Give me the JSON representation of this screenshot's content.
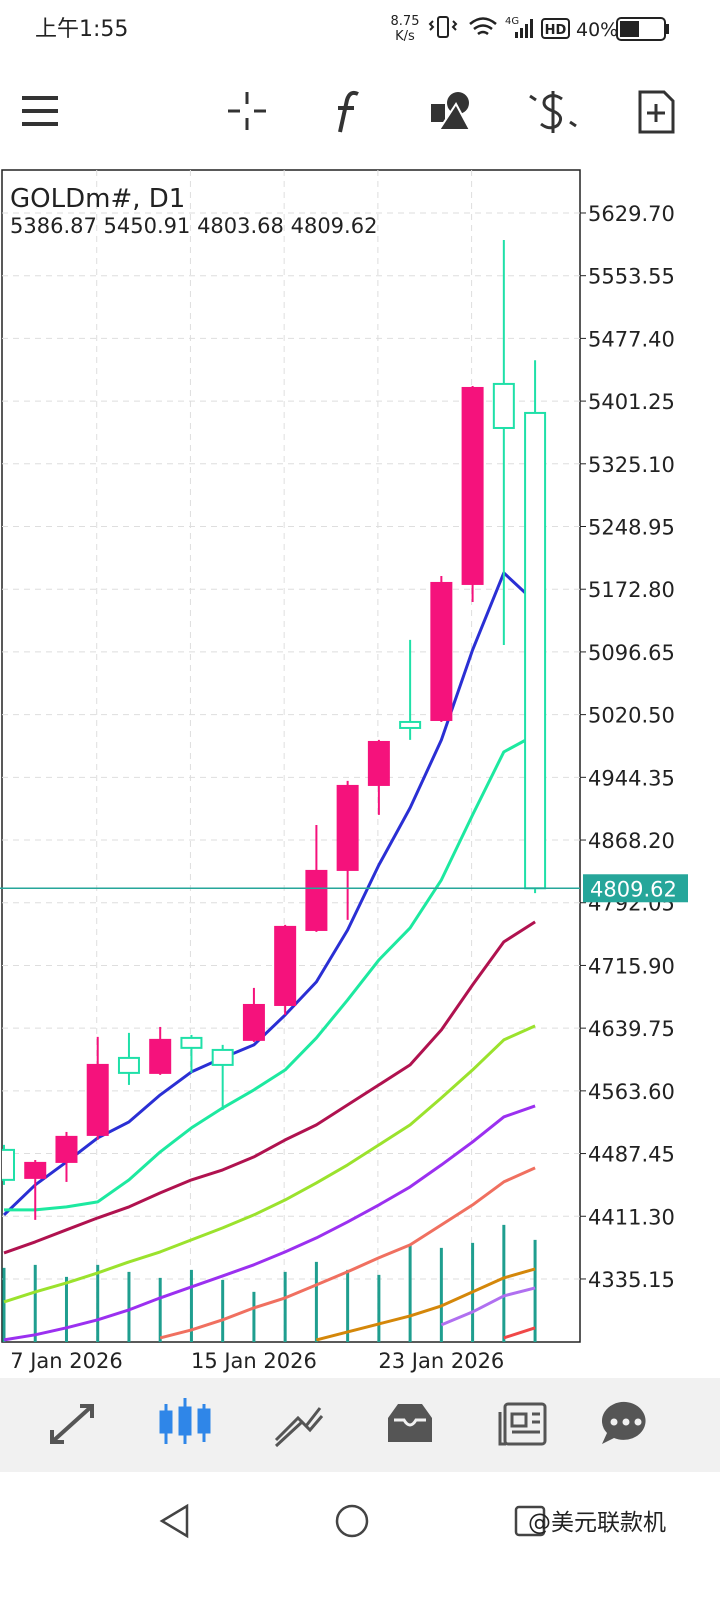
{
  "status_bar": {
    "time": "上午1:55",
    "speed": "8.75",
    "speed_unit": "K/s",
    "network": "4G",
    "hd": "HD",
    "battery": "40%"
  },
  "chart_data": {
    "type": "candlestick",
    "title": "GOLDm#, D1",
    "categories": [
      null,
      null,
      "7 Jan 2026",
      null,
      null,
      null,
      null,
      null,
      "15 Jan 2026",
      null,
      null,
      null,
      null,
      null,
      "23 Jan 2026",
      null,
      null,
      null
    ],
    "open": [
      4491.9,
      4457.9,
      4477.3,
      4510.1,
      4603.6,
      4585.4,
      4627.9,
      4613.3,
      4625.5,
      4667.9,
      4759.0,
      4831.9,
      4935.1,
      5011.6,
      5014.0,
      5179.2,
      5422.1,
      5386.87
    ],
    "high": [
      4498.0,
      4479.6,
      4513.7,
      4629.1,
      4634.0,
      4641.2,
      4631.5,
      4619.4,
      4688.6,
      4765.1,
      4886.5,
      4940.0,
      4989.8,
      5111.2,
      5188.9,
      5419.6,
      5596.9,
      5450.91
    ],
    "low": [
      4449.4,
      4406.9,
      4453.0,
      4504.0,
      4570.8,
      4583.0,
      4585.4,
      4540.5,
      4623.0,
      4655.8,
      4756.6,
      4771.2,
      4898.7,
      4989.8,
      5011.6,
      5157.3,
      5105.1,
      4803.68
    ],
    "close": [
      4455.5,
      4476.1,
      4507.7,
      4595.1,
      4585.4,
      4625.5,
      4615.8,
      4595.1,
      4667.9,
      4762.7,
      4830.7,
      4933.9,
      4987.3,
      5004.3,
      5180.4,
      5417.2,
      5368.6,
      4809.62
    ],
    "up_color": "#f5127c",
    "down_color": "#1fe0a8",
    "volume": {
      "color": "#1f9e8f",
      "values": [
        4348.6,
        4352.3,
        4337.7,
        4352.3,
        4343.8,
        4336.5,
        4346.2,
        4334.0,
        4319.5,
        4343.8,
        4355.9,
        4346.2,
        4340.1,
        4376.5,
        4372.9,
        4379.0,
        4400.8,
        4382.6
      ]
    },
    "lines": [
      {
        "color": "#2a2fd4",
        "values": [
          4413.0,
          4449.4,
          4477.3,
          4506.5,
          4525.9,
          4558.7,
          4586.6,
          4603.6,
          4619.4,
          4655.8,
          4695.9,
          4759.0,
          4838.0,
          4907.2,
          4989.8,
          5099.1,
          5192.6,
          5157.3
        ]
      },
      {
        "color": "#1de9a0",
        "values": [
          4419.0,
          4419.0,
          4422.7,
          4428.8,
          4455.5,
          4489.5,
          4518.6,
          4542.9,
          4564.8,
          4589.0,
          4627.9,
          4674.0,
          4722.6,
          4761.5,
          4819.8,
          4898.7,
          4975.2,
          4995.8
        ]
      },
      {
        "color": "#b0124f",
        "values": [
          4366.8,
          4380.2,
          4394.8,
          4409.3,
          4422.7,
          4439.7,
          4455.5,
          4467.6,
          4483.4,
          4504.0,
          4522.3,
          4546.5,
          4570.8,
          4595.1,
          4637.6,
          4692.3,
          4744.5,
          4768.8
        ]
      },
      {
        "color": "#9be22d",
        "values": [
          4307.3,
          4319.5,
          4330.4,
          4342.5,
          4355.9,
          4368.0,
          4382.6,
          4397.2,
          4413.0,
          4431.2,
          4451.8,
          4473.7,
          4498.0,
          4522.3,
          4555.0,
          4589.0,
          4625.5,
          4642.5
        ]
      },
      {
        "color": "#9b30f0",
        "values": [
          4261.2,
          4267.3,
          4275.8,
          4285.5,
          4297.6,
          4312.2,
          4325.5,
          4338.9,
          4352.3,
          4368.0,
          4385.0,
          4404.5,
          4425.1,
          4447.0,
          4473.7,
          4501.6,
          4532.0,
          4545.3
        ]
      },
      {
        "color": "#f07060",
        "values": [
          null,
          null,
          null,
          null,
          null,
          4263.6,
          4273.3,
          4285.5,
          4300.0,
          4312.2,
          4328.0,
          4343.8,
          4360.8,
          4376.5,
          4400.8,
          4425.1,
          4453.0,
          4470.0
        ]
      },
      {
        "color": "#d4870a",
        "values": [
          null,
          null,
          null,
          null,
          null,
          null,
          null,
          null,
          null,
          null,
          4261.2,
          4270.9,
          4280.6,
          4290.3,
          4302.5,
          4319.5,
          4336.5,
          4347.4
        ]
      },
      {
        "color": "#b070f0",
        "values": [
          null,
          null,
          null,
          null,
          null,
          null,
          null,
          null,
          null,
          null,
          null,
          null,
          null,
          null,
          4279.4,
          4295.2,
          4314.6,
          4324.3
        ]
      },
      {
        "color": "#f04848",
        "values": [
          null,
          null,
          null,
          null,
          null,
          null,
          null,
          null,
          null,
          null,
          null,
          null,
          null,
          null,
          null,
          null,
          4263.6,
          4275.8
        ]
      }
    ],
    "ylim": [
      4258.6,
      5681.9
    ],
    "yticks": [
      {
        "value": 5629.7,
        "label": "5629.70"
      },
      5553.55,
      {
        "value": 5477.4,
        "label": "5477.40"
      },
      5401.25,
      {
        "value": 5325.1,
        "label": "5325.10"
      },
      5248.95,
      {
        "value": 5172.8,
        "label": "5172.80"
      },
      5096.65,
      {
        "value": 5020.5,
        "label": "5020.50"
      },
      4944.35,
      {
        "value": 4868.2,
        "label": "4868.20"
      },
      4792.05,
      {
        "value": 4715.9,
        "label": "4715.90"
      },
      4639.75,
      {
        "value": 4563.6,
        "label": "4563.60"
      },
      4487.45,
      {
        "value": 4411.3,
        "label": "4411.30"
      },
      4335.15
    ],
    "grid": true,
    "price_line_color": "#26a69a"
  },
  "watermark": "@美元联款机"
}
